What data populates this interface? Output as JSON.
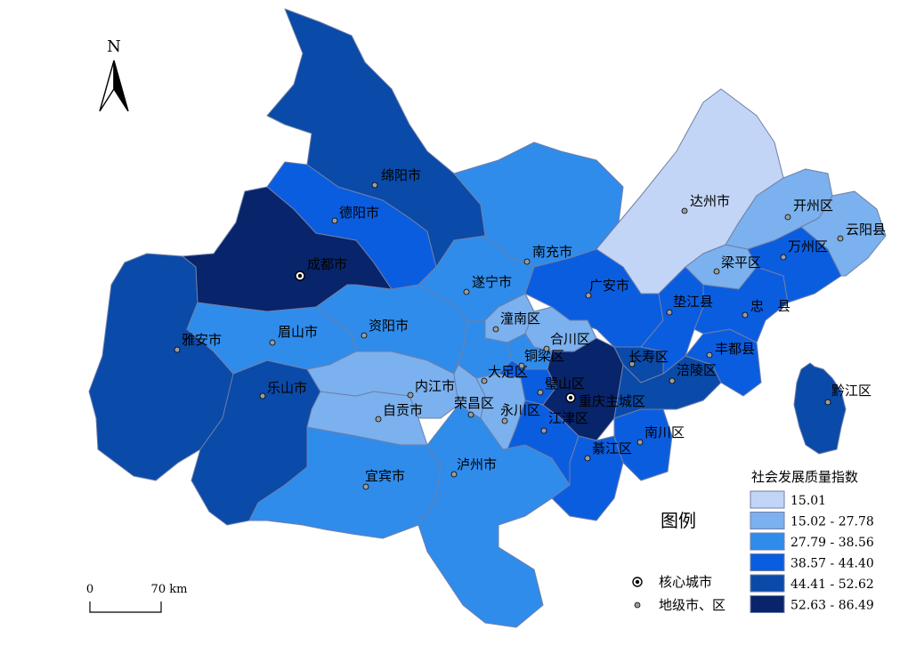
{
  "north_arrow": {
    "letter": "N",
    "icon": "north-arrow-icon"
  },
  "legend_heading": "图例",
  "symbol_legend": [
    {
      "symbol": "core-city-icon",
      "label": "核心城市"
    },
    {
      "symbol": "prefecture-city-icon",
      "label": "地级市、区"
    }
  ],
  "class_legend": {
    "title": "社会发展质量指数",
    "classes": [
      {
        "label": "15.01",
        "color": "#c3d5f6"
      },
      {
        "label": "15.02 - 27.78",
        "color": "#7bb1ee"
      },
      {
        "label": "27.79 - 38.56",
        "color": "#2f8ceb"
      },
      {
        "label": "38.57 - 44.40",
        "color": "#0b5ddf"
      },
      {
        "label": "44.41 - 52.62",
        "color": "#0a4aa8"
      },
      {
        "label": "52.63 - 86.49",
        "color": "#08246a"
      }
    ]
  },
  "scale_bar": {
    "start": "0",
    "end": "70 km"
  },
  "cities": [
    {
      "name": "绵阳市",
      "type": "pref",
      "class": 4
    },
    {
      "name": "德阳市",
      "type": "pref",
      "class": 3
    },
    {
      "name": "成都市",
      "type": "core",
      "class": 5
    },
    {
      "name": "雅安市",
      "type": "pref",
      "class": 4
    },
    {
      "name": "眉山市",
      "type": "pref",
      "class": 2
    },
    {
      "name": "乐山市",
      "type": "pref",
      "class": 4
    },
    {
      "name": "资阳市",
      "type": "pref",
      "class": 2
    },
    {
      "name": "内江市",
      "type": "pref",
      "class": 1
    },
    {
      "name": "自贡市",
      "type": "pref",
      "class": 1
    },
    {
      "name": "宜宾市",
      "type": "pref",
      "class": 2
    },
    {
      "name": "泸州市",
      "type": "pref",
      "class": 2
    },
    {
      "name": "遂宁市",
      "type": "pref",
      "class": 2
    },
    {
      "name": "南充市",
      "type": "pref",
      "class": 2
    },
    {
      "name": "广安市",
      "type": "pref",
      "class": 3
    },
    {
      "name": "达州市",
      "type": "pref",
      "class": 0
    },
    {
      "name": "开州区",
      "type": "pref",
      "class": 1
    },
    {
      "name": "云阳县",
      "type": "pref",
      "class": 1
    },
    {
      "name": "万州区",
      "type": "pref",
      "class": 3
    },
    {
      "name": "梁平区",
      "type": "pref",
      "class": 1
    },
    {
      "name": "垫江县",
      "type": "pref",
      "class": 3
    },
    {
      "name": "忠　县",
      "type": "pref",
      "class": 3
    },
    {
      "name": "丰都县",
      "type": "pref",
      "class": 3
    },
    {
      "name": "涪陵区",
      "type": "pref",
      "class": 4
    },
    {
      "name": "长寿区",
      "type": "pref",
      "class": 4
    },
    {
      "name": "黔江区",
      "type": "pref",
      "class": 4
    },
    {
      "name": "南川区",
      "type": "pref",
      "class": 3
    },
    {
      "name": "綦江区",
      "type": "pref",
      "class": 3
    },
    {
      "name": "江津区",
      "type": "pref",
      "class": 3
    },
    {
      "name": "重庆主城区",
      "type": "core",
      "class": 5
    },
    {
      "name": "璧山区",
      "type": "pref",
      "class": 3
    },
    {
      "name": "永川区",
      "type": "pref",
      "class": 1
    },
    {
      "name": "荣昌区",
      "type": "pref",
      "class": 1
    },
    {
      "name": "大足区",
      "type": "pref",
      "class": 2
    },
    {
      "name": "铜梁区",
      "type": "pref",
      "class": 2
    },
    {
      "name": "合川区",
      "type": "pref",
      "class": 1
    },
    {
      "name": "潼南区",
      "type": "pref",
      "class": 1
    }
  ]
}
